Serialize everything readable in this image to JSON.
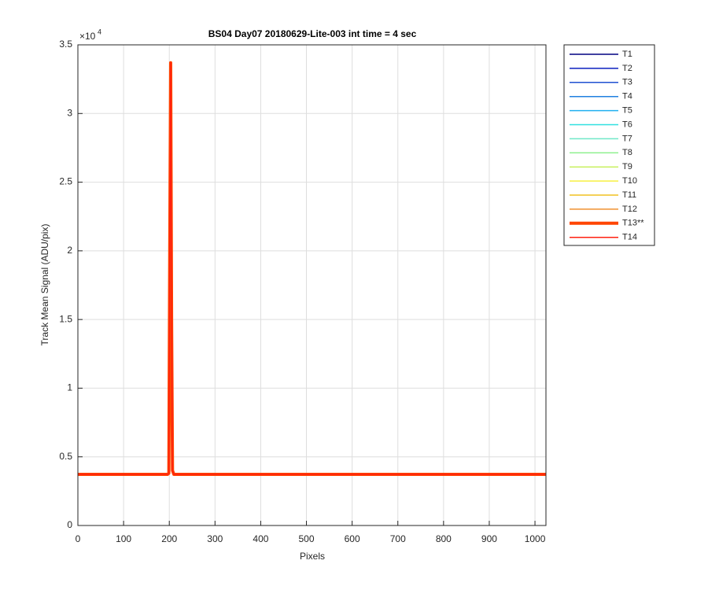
{
  "chart_data": {
    "type": "line",
    "title": "BS04 Day07 20180629-Lite-003 int time = 4 sec",
    "xlabel": "Pixels",
    "ylabel": "Track Mean Signal (ADU/pix)",
    "y_exponent_base": "×10",
    "y_exponent_power": "4",
    "xlim": [
      0,
      1024
    ],
    "ylim": [
      0,
      35000
    ],
    "xticks": [
      0,
      100,
      200,
      300,
      400,
      500,
      600,
      700,
      800,
      900,
      1000
    ],
    "yticks": [
      0,
      {
        "value": 5000,
        "label": "0.5"
      },
      {
        "value": 10000,
        "label": "1"
      },
      {
        "value": 15000,
        "label": "1.5"
      },
      {
        "value": 20000,
        "label": "2"
      },
      {
        "value": 25000,
        "label": "2.5"
      },
      {
        "value": 30000,
        "label": "3"
      },
      {
        "value": 35000,
        "label": "3.5"
      }
    ],
    "grid": true,
    "legend": "outside-right",
    "x": [
      0,
      196,
      199,
      201,
      203,
      205,
      207,
      210,
      1024
    ],
    "series": [
      {
        "name": "T1",
        "color": "#000080",
        "linewidth": 1.5,
        "values": [
          3720,
          3720,
          3800,
          20000,
          33700,
          15000,
          4000,
          3720,
          3720
        ]
      },
      {
        "name": "T2",
        "color": "#0a1fbf",
        "linewidth": 1.5,
        "values": [
          3720,
          3720,
          3800,
          20000,
          33700,
          15000,
          4000,
          3720,
          3720
        ]
      },
      {
        "name": "T3",
        "color": "#1f50d0",
        "linewidth": 1.5,
        "values": [
          3720,
          3720,
          3800,
          20000,
          33700,
          15000,
          4000,
          3720,
          3720
        ]
      },
      {
        "name": "T4",
        "color": "#2080e0",
        "linewidth": 1.5,
        "values": [
          3720,
          3720,
          3800,
          20000,
          33700,
          15000,
          4000,
          3720,
          3720
        ]
      },
      {
        "name": "T5",
        "color": "#20b0f0",
        "linewidth": 1.5,
        "values": [
          3720,
          3720,
          3800,
          20000,
          33700,
          15000,
          4000,
          3720,
          3720
        ]
      },
      {
        "name": "T6",
        "color": "#30e0e0",
        "linewidth": 1.5,
        "values": [
          3720,
          3720,
          3800,
          20000,
          33700,
          15000,
          4000,
          3720,
          3720
        ]
      },
      {
        "name": "T7",
        "color": "#70e8c8",
        "linewidth": 1.5,
        "values": [
          3720,
          3720,
          3800,
          20000,
          33700,
          15000,
          4000,
          3720,
          3720
        ]
      },
      {
        "name": "T8",
        "color": "#90f090",
        "linewidth": 1.5,
        "values": [
          3720,
          3720,
          3800,
          20000,
          33700,
          15000,
          4000,
          3720,
          3720
        ]
      },
      {
        "name": "T9",
        "color": "#c8f060",
        "linewidth": 1.5,
        "values": [
          3720,
          3720,
          3800,
          20000,
          33700,
          15000,
          4000,
          3720,
          3720
        ]
      },
      {
        "name": "T10",
        "color": "#f8f040",
        "linewidth": 1.5,
        "values": [
          3720,
          3720,
          3800,
          20000,
          33700,
          15000,
          4000,
          3720,
          3720
        ]
      },
      {
        "name": "T11",
        "color": "#f0c020",
        "linewidth": 1.5,
        "values": [
          3720,
          3720,
          3800,
          20000,
          33700,
          15000,
          4000,
          3720,
          3720
        ]
      },
      {
        "name": "T12",
        "color": "#f09030",
        "linewidth": 1.5,
        "values": [
          3720,
          3720,
          3800,
          20000,
          33700,
          15000,
          4000,
          3720,
          3720
        ]
      },
      {
        "name": "T13**",
        "color": "#ff4500",
        "linewidth": 4,
        "values": [
          3720,
          3720,
          3800,
          20000,
          33700,
          15000,
          4000,
          3720,
          3720
        ]
      },
      {
        "name": "T14",
        "color": "#ff2010",
        "linewidth": 1.5,
        "values": [
          3720,
          3720,
          3800,
          20000,
          33700,
          15000,
          4000,
          3720,
          3720
        ]
      }
    ]
  }
}
